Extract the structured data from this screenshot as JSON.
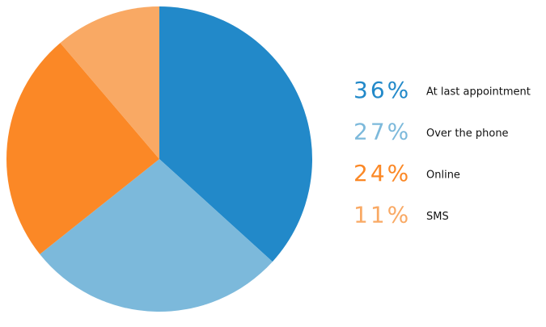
{
  "chart_data": {
    "type": "pie",
    "categories": [
      "At last appointment",
      "Over the phone",
      "Online",
      "SMS"
    ],
    "values": [
      36,
      27,
      24,
      11
    ],
    "value_labels": [
      "36%",
      "27%",
      "24%",
      "11%"
    ],
    "colors": [
      "#2289c9",
      "#7cb9db",
      "#fb8826",
      "#f9a964"
    ]
  }
}
